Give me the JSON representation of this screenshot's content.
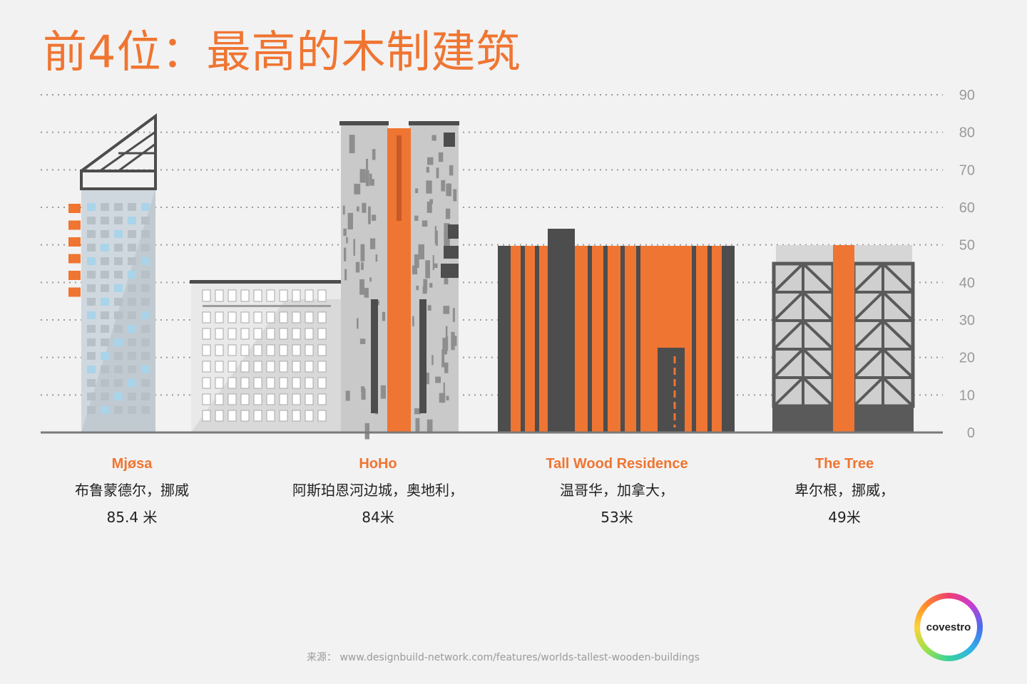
{
  "title": "前4位：最高的木制建筑",
  "chart_data": {
    "type": "bar",
    "ylim": [
      0,
      90
    ],
    "yticks": [
      0,
      10,
      20,
      30,
      40,
      50,
      60,
      70,
      80,
      90
    ],
    "grid": true,
    "categories": [
      "Mjøsa",
      "HoHo",
      "Tall Wood Residence",
      "The Tree"
    ],
    "values": [
      85.4,
      84,
      53,
      49
    ],
    "buildings": [
      {
        "name": "Mjøsa",
        "location": "布鲁蒙德尔，挪威",
        "height_label": "85.4 米",
        "height": 85.4
      },
      {
        "name": "HoHo",
        "location": "阿斯珀恩河边城，奥地利，",
        "height_label": "84米",
        "height": 84
      },
      {
        "name": "Tall Wood Residence",
        "location": "温哥华，加拿大，",
        "height_label": "53米",
        "height": 53
      },
      {
        "name": "The Tree",
        "location": "卑尔根，挪威，",
        "height_label": "49米",
        "height": 49
      }
    ]
  },
  "source": "来源：  www.designbuild-network.com/features/worlds-tallest-wooden-buildings",
  "logo_text": "covestro",
  "colors": {
    "accent": "#ef7532",
    "dark": "#4d4d4d",
    "light": "#cccccc",
    "grid": "#9a9a9a"
  }
}
